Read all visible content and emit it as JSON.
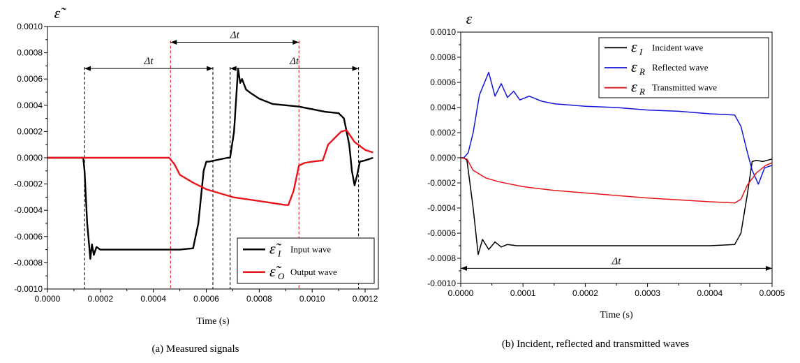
{
  "chart_data": [
    {
      "id": "a",
      "type": "line",
      "caption": "(a) Measured signals",
      "ylabel": "ε̃",
      "xlabel": "Time (s)",
      "xlim": [
        0,
        0.00125
      ],
      "ylim": [
        -0.001,
        0.001
      ],
      "xticks": [
        "0.0000",
        "0.0002",
        "0.0004",
        "0.0006",
        "0.0008",
        "0.0010",
        "0.0012"
      ],
      "yticks": [
        "-0.0010",
        "-0.0008",
        "-0.0006",
        "-0.0004",
        "-0.0002",
        "0.0000",
        "0.0002",
        "0.0004",
        "0.0006",
        "0.0008",
        "0.0010"
      ],
      "legend_position": "bottom-right",
      "legend": [
        {
          "symbol": "ε̃",
          "sub": "I",
          "label": "Input wave",
          "color": "#000000"
        },
        {
          "symbol": "ε̃",
          "sub": "O",
          "label": "Output wave",
          "color": "#e8141c"
        }
      ],
      "annotation_label": "Δt",
      "series": [
        {
          "name": "Input wave",
          "color": "#000000",
          "points": [
            [
              0,
              0
            ],
            [
              0.000135,
              0
            ],
            [
              0.00014,
              -0.0001
            ],
            [
              0.00015,
              -0.0005
            ],
            [
              0.000162,
              -0.00077
            ],
            [
              0.000168,
              -0.00066
            ],
            [
              0.000175,
              -0.00074
            ],
            [
              0.000185,
              -0.00068
            ],
            [
              0.0002,
              -0.0007
            ],
            [
              0.00025,
              -0.0007
            ],
            [
              0.0003,
              -0.0007
            ],
            [
              0.0004,
              -0.0007
            ],
            [
              0.0005,
              -0.0007
            ],
            [
              0.00055,
              -0.00069
            ],
            [
              0.00057,
              -0.0005
            ],
            [
              0.00059,
              -0.0001
            ],
            [
              0.0006,
              -3e-05
            ],
            [
              0.00061,
              -3e-05
            ],
            [
              0.00068,
              0
            ],
            [
              0.00069,
              0
            ],
            [
              0.000705,
              0.0002
            ],
            [
              0.00072,
              0.00068
            ],
            [
              0.000728,
              0.00057
            ],
            [
              0.000735,
              0.0006
            ],
            [
              0.00075,
              0.00052
            ],
            [
              0.00077,
              0.00049
            ],
            [
              0.0008,
              0.00045
            ],
            [
              0.00085,
              0.00041
            ],
            [
              0.0009,
              0.0004
            ],
            [
              0.00095,
              0.00039
            ],
            [
              0.001,
              0.00037
            ],
            [
              0.00105,
              0.00035
            ],
            [
              0.0011,
              0.00034
            ],
            [
              0.00112,
              0.0003
            ],
            [
              0.00114,
              0.0001
            ],
            [
              0.00115,
              -0.0001
            ],
            [
              0.00116,
              -0.00021
            ],
            [
              0.00117,
              -0.00013
            ],
            [
              0.00118,
              -3e-05
            ],
            [
              0.0012,
              -2e-05
            ],
            [
              0.00123,
              0
            ]
          ]
        },
        {
          "name": "Output wave",
          "color": "#e8141c",
          "points": [
            [
              0,
              0
            ],
            [
              0.00046,
              0
            ],
            [
              0.00048,
              -5e-05
            ],
            [
              0.0005,
              -0.00013
            ],
            [
              0.00055,
              -0.00019
            ],
            [
              0.0006,
              -0.00024
            ],
            [
              0.0007,
              -0.0003
            ],
            [
              0.0008,
              -0.00033
            ],
            [
              0.0009,
              -0.00036
            ],
            [
              0.00091,
              -0.00036
            ],
            [
              0.00093,
              -0.00025
            ],
            [
              0.00095,
              -6e-05
            ],
            [
              0.00097,
              -4e-05
            ],
            [
              0.001,
              -3e-05
            ],
            [
              0.00104,
              -2e-05
            ],
            [
              0.00106,
              0.0001
            ],
            [
              0.00109,
              0.00016
            ],
            [
              0.00111,
              0.0002
            ],
            [
              0.00113,
              0.00021
            ],
            [
              0.00116,
              0.00012
            ],
            [
              0.0012,
              6e-05
            ],
            [
              0.00123,
              4e-05
            ]
          ]
        }
      ],
      "arrows": [
        {
          "x1": 0.00014,
          "x2": 0.000625,
          "y": 0.00068
        },
        {
          "x1": 0.000465,
          "x2": 0.00095,
          "y": 0.00088
        },
        {
          "x1": 0.00069,
          "x2": 0.001175,
          "y": 0.00068
        }
      ]
    },
    {
      "id": "b",
      "type": "line",
      "caption": "(b) Incident, reflected and transmitted waves",
      "ylabel": "ε",
      "xlabel": "Time (s)",
      "xlim": [
        0,
        0.0005
      ],
      "ylim": [
        -0.001,
        0.001
      ],
      "xticks": [
        "0.0000",
        "0.0001",
        "0.0002",
        "0.0003",
        "0.0004",
        "0.0005"
      ],
      "yticks": [
        "-0.0010",
        "-0.0008",
        "-0.0006",
        "-0.0004",
        "-0.0002",
        "0.0000",
        "0.0002",
        "0.0004",
        "0.0006",
        "0.0008",
        "0.0010"
      ],
      "legend_position": "top-right",
      "legend": [
        {
          "symbol": "ε",
          "sub": "I",
          "label": "Incident wave",
          "color": "#000000"
        },
        {
          "symbol": "ε",
          "sub": "R",
          "label": "Reflected wave",
          "color": "#1414d8"
        },
        {
          "symbol": "ε",
          "sub": "R",
          "label": "Transmitted wave",
          "color": "#e8141c"
        }
      ],
      "annotation_label": "Δt",
      "series": [
        {
          "name": "Incident wave",
          "color": "#000000",
          "points": [
            [
              0,
              0
            ],
            [
              5e-06,
              0
            ],
            [
              1e-05,
              -2e-05
            ],
            [
              2e-05,
              -0.0004
            ],
            [
              2.8e-05,
              -0.00077
            ],
            [
              3.5e-05,
              -0.00065
            ],
            [
              4.5e-05,
              -0.00073
            ],
            [
              5.5e-05,
              -0.00067
            ],
            [
              6.5e-05,
              -0.00071
            ],
            [
              7.5e-05,
              -0.00069
            ],
            [
              9e-05,
              -0.0007
            ],
            [
              0.0002,
              -0.0007
            ],
            [
              0.0003,
              -0.0007
            ],
            [
              0.0004,
              -0.0007
            ],
            [
              0.00044,
              -0.00069
            ],
            [
              0.00045,
              -0.0006
            ],
            [
              0.00046,
              -0.0003
            ],
            [
              0.000468,
              -3e-05
            ],
            [
              0.000475,
              -2e-05
            ],
            [
              0.000485,
              -3e-05
            ],
            [
              0.0005,
              -1e-05
            ]
          ]
        },
        {
          "name": "Reflected wave",
          "color": "#1414d8",
          "points": [
            [
              0,
              0
            ],
            [
              5e-06,
              0
            ],
            [
              1.2e-05,
              4e-05
            ],
            [
              2e-05,
              0.0002
            ],
            [
              3e-05,
              0.0005
            ],
            [
              4.5e-05,
              0.00068
            ],
            [
              5.5e-05,
              0.00049
            ],
            [
              6.5e-05,
              0.00059
            ],
            [
              7.5e-05,
              0.00048
            ],
            [
              8.5e-05,
              0.00053
            ],
            [
              9.5e-05,
              0.00046
            ],
            [
              0.00011,
              0.00049
            ],
            [
              0.00013,
              0.00045
            ],
            [
              0.00015,
              0.00043
            ],
            [
              0.0002,
              0.00041
            ],
            [
              0.00025,
              0.0004
            ],
            [
              0.0003,
              0.00038
            ],
            [
              0.00035,
              0.00037
            ],
            [
              0.0004,
              0.00035
            ],
            [
              0.00044,
              0.00034
            ],
            [
              0.00045,
              0.00025
            ],
            [
              0.00046,
              5e-05
            ],
            [
              0.000468,
              -0.0001
            ],
            [
              0.000478,
              -0.00021
            ],
            [
              0.000488,
              -8e-05
            ],
            [
              0.0005,
              -6e-05
            ]
          ]
        },
        {
          "name": "Transmitted wave",
          "color": "#e8141c",
          "points": [
            [
              0,
              0
            ],
            [
              1e-05,
              -1e-05
            ],
            [
              2e-05,
              -0.0001
            ],
            [
              4e-05,
              -0.00016
            ],
            [
              6e-05,
              -0.00019
            ],
            [
              0.0001,
              -0.00023
            ],
            [
              0.00015,
              -0.00026
            ],
            [
              0.0002,
              -0.00028
            ],
            [
              0.0003,
              -0.00032
            ],
            [
              0.0004,
              -0.00035
            ],
            [
              0.00044,
              -0.00036
            ],
            [
              0.00045,
              -0.00033
            ],
            [
              0.00046,
              -0.00022
            ],
            [
              0.000475,
              -0.00012
            ],
            [
              0.00049,
              -6e-05
            ],
            [
              0.0005,
              -4e-05
            ]
          ]
        }
      ],
      "arrows": [
        {
          "x1": 0.0,
          "x2": 0.0005,
          "y": -0.00088
        }
      ]
    }
  ]
}
